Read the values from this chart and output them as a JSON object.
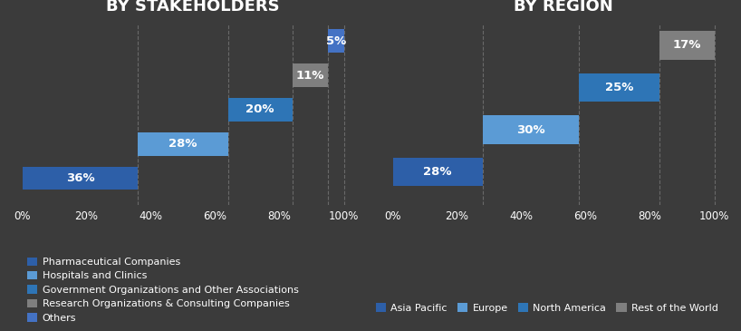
{
  "bg_color": "#3b3b3b",
  "chart_bg": "#3b3b3b",
  "left_title": "BY STAKEHOLDERS",
  "left_bars": [
    {
      "label": "Pharmaceutical Companies",
      "value": 36,
      "color": "#2d5fa8"
    },
    {
      "label": "Hospitals and Clinics",
      "value": 28,
      "color": "#5b9bd5"
    },
    {
      "label": "Government Organizations and Other Associations",
      "value": 20,
      "color": "#2e75b6"
    },
    {
      "label": "Research Organizations & Consulting Companies",
      "value": 11,
      "color": "#7f7f7f"
    },
    {
      "label": "Others",
      "value": 5,
      "color": "#4472c4"
    }
  ],
  "left_legend": [
    {
      "label": "Pharmaceutical Companies",
      "color": "#2d5fa8"
    },
    {
      "label": "Hospitals and Clinics",
      "color": "#5b9bd5"
    },
    {
      "label": "Government Organizations and Other Associations",
      "color": "#2e75b6"
    },
    {
      "label": "Research Organizations & Consulting Companies",
      "color": "#7f7f7f"
    },
    {
      "label": "Others",
      "color": "#4472c4"
    }
  ],
  "right_title": "BY REGION",
  "right_bars": [
    {
      "label": "Asia Pacific",
      "value": 28,
      "color": "#2d5fa8"
    },
    {
      "label": "Europe",
      "value": 30,
      "color": "#5b9bd5"
    },
    {
      "label": "North America",
      "value": 25,
      "color": "#2e75b6"
    },
    {
      "label": "Rest of the World",
      "value": 17,
      "color": "#7f7f7f"
    }
  ],
  "right_legend": [
    {
      "label": "Asia Pacific",
      "color": "#2d5fa8"
    },
    {
      "label": "Europe",
      "color": "#5b9bd5"
    },
    {
      "label": "North America",
      "color": "#2e75b6"
    },
    {
      "label": "Rest of the World",
      "color": "#7f7f7f"
    }
  ],
  "text_color": "#ffffff",
  "label_fontsize": 9.5,
  "title_fontsize": 13,
  "tick_fontsize": 8.5,
  "legend_fontsize": 8,
  "bar_height": 0.38,
  "bar_gap": 0.18,
  "grid_color": "#606060",
  "dashed_color": "#888888"
}
